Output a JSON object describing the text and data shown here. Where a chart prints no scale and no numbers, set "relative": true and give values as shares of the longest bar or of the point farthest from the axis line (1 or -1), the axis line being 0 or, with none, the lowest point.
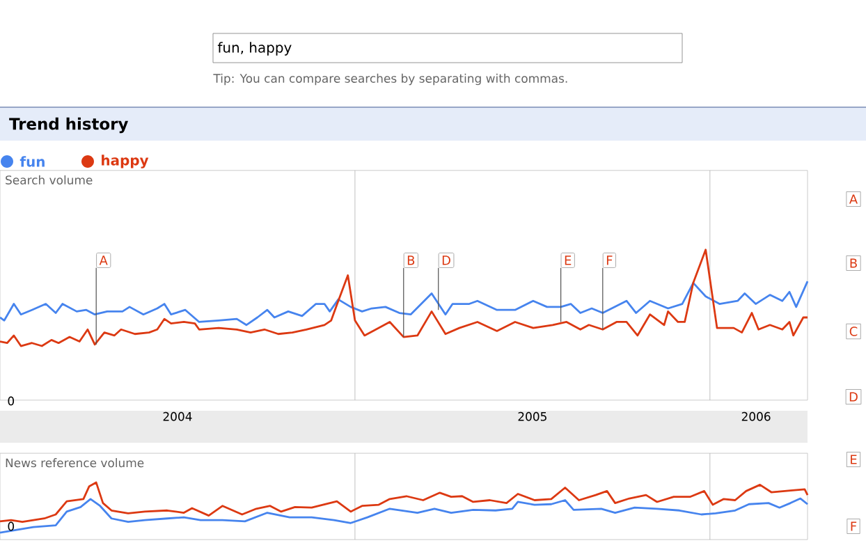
{
  "chart_data": [
    {
      "type": "line",
      "title": "Trend history",
      "ylabel": "Search volume",
      "relative": true,
      "legend": "top left",
      "xlim": [
        2004,
        2006.275
      ],
      "xticks": [
        {
          "value": 2004.5,
          "label": "2004"
        },
        {
          "value": 2005.5,
          "label": "2005"
        },
        {
          "value": 2006.13,
          "label": "2006"
        }
      ],
      "ref_lines": [
        {
          "axis": "x",
          "value": 2005,
          "color": "#b0b0b0"
        },
        {
          "axis": "x",
          "value": 2006,
          "color": "#b0b0b0"
        }
      ],
      "annotations": [
        "fun, happy",
        "Tip: You can compare searches by separating with commas.",
        "0",
        "A",
        "B",
        "C",
        "D",
        {
          "text": "A",
          "x": 2004.271,
          "y": 0.37
        },
        {
          "text": "B",
          "x": 2005.137,
          "y": 0.42
        },
        {
          "text": "D",
          "x": 2005.235,
          "y": 0.6
        },
        {
          "text": "E",
          "x": 2005.58,
          "y": 0.52
        },
        {
          "text": "F",
          "x": 2005.698,
          "y": 0.47
        }
      ],
      "series": [
        {
          "name": "fun",
          "color": "#4684ee",
          "x": [
            2004.0,
            2004.012,
            2004.039,
            2004.059,
            2004.09,
            2004.129,
            2004.157,
            2004.176,
            2004.216,
            2004.243,
            2004.267,
            2004.302,
            2004.345,
            2004.365,
            2004.404,
            2004.443,
            2004.463,
            2004.482,
            2004.522,
            2004.561,
            2004.616,
            2004.667,
            2004.694,
            2004.725,
            2004.753,
            2004.773,
            2004.812,
            2004.851,
            2004.89,
            2004.914,
            2004.929,
            2004.953,
            2004.988,
            2005.02,
            2005.047,
            2005.086,
            2005.125,
            2005.157,
            2005.216,
            2005.255,
            2005.275,
            2005.322,
            2005.345,
            2005.4,
            2005.451,
            2005.502,
            2005.541,
            2005.58,
            2005.608,
            2005.635,
            2005.667,
            2005.698,
            2005.765,
            2005.792,
            2005.831,
            2005.882,
            2005.922,
            2005.953,
            2005.988,
            2006.027,
            2006.078,
            2006.098,
            2006.129,
            2006.169,
            2006.204,
            2006.224,
            2006.243,
            2006.275
          ],
          "values": [
            0.55,
            0.53,
            0.64,
            0.57,
            0.6,
            0.64,
            0.58,
            0.64,
            0.59,
            0.6,
            0.57,
            0.59,
            0.59,
            0.62,
            0.57,
            0.61,
            0.64,
            0.57,
            0.6,
            0.52,
            0.53,
            0.54,
            0.5,
            0.55,
            0.6,
            0.55,
            0.59,
            0.56,
            0.64,
            0.64,
            0.59,
            0.67,
            0.62,
            0.59,
            0.61,
            0.62,
            0.58,
            0.57,
            0.71,
            0.57,
            0.64,
            0.64,
            0.66,
            0.6,
            0.6,
            0.66,
            0.62,
            0.62,
            0.64,
            0.58,
            0.61,
            0.58,
            0.66,
            0.58,
            0.66,
            0.61,
            0.64,
            0.78,
            0.69,
            0.64,
            0.66,
            0.71,
            0.64,
            0.7,
            0.66,
            0.72,
            0.62,
            0.79
          ]
        },
        {
          "name": "happy",
          "color": "#dc3912",
          "x": [
            2004.0,
            2004.02,
            2004.039,
            2004.059,
            2004.09,
            2004.118,
            2004.145,
            2004.165,
            2004.196,
            2004.224,
            2004.247,
            2004.267,
            2004.294,
            2004.322,
            2004.341,
            2004.38,
            2004.42,
            2004.443,
            2004.463,
            2004.482,
            2004.518,
            2004.549,
            2004.561,
            2004.616,
            2004.667,
            2004.706,
            2004.745,
            2004.784,
            2004.824,
            2004.863,
            2004.914,
            2004.933,
            2004.953,
            2004.98,
            2005.0,
            2005.027,
            2005.059,
            2005.098,
            2005.137,
            2005.176,
            2005.216,
            2005.255,
            2005.294,
            2005.345,
            2005.4,
            2005.451,
            2005.502,
            2005.557,
            2005.596,
            2005.635,
            2005.659,
            2005.698,
            2005.737,
            2005.765,
            2005.796,
            2005.831,
            2005.871,
            2005.882,
            2005.91,
            2005.929,
            2005.953,
            2005.988,
            2006.02,
            2006.067,
            2006.09,
            2006.118,
            2006.137,
            2006.169,
            2006.204,
            2006.224,
            2006.235,
            2006.263,
            2006.275
          ],
          "values": [
            0.39,
            0.38,
            0.43,
            0.36,
            0.38,
            0.36,
            0.4,
            0.38,
            0.42,
            0.39,
            0.47,
            0.37,
            0.45,
            0.43,
            0.47,
            0.44,
            0.45,
            0.47,
            0.54,
            0.51,
            0.52,
            0.51,
            0.47,
            0.48,
            0.47,
            0.45,
            0.47,
            0.44,
            0.45,
            0.47,
            0.5,
            0.53,
            0.66,
            0.83,
            0.53,
            0.43,
            0.47,
            0.52,
            0.42,
            0.43,
            0.59,
            0.44,
            0.48,
            0.52,
            0.46,
            0.52,
            0.48,
            0.5,
            0.52,
            0.47,
            0.5,
            0.47,
            0.52,
            0.52,
            0.43,
            0.57,
            0.5,
            0.59,
            0.52,
            0.52,
            0.78,
            1.0,
            0.48,
            0.48,
            0.45,
            0.58,
            0.47,
            0.5,
            0.47,
            0.52,
            0.43,
            0.55,
            0.55
          ]
        }
      ]
    },
    {
      "type": "line",
      "ylabel": "News reference volume",
      "relative": true,
      "xlim": [
        2004,
        2006.275
      ],
      "ref_lines": [
        {
          "axis": "x",
          "value": 2005,
          "color": "#b0b0b0"
        },
        {
          "axis": "x",
          "value": 2006,
          "color": "#b0b0b0"
        }
      ],
      "annotations": [
        "0",
        "E",
        "F"
      ],
      "series": [
        {
          "color": "#4684ee",
          "x": [
            2004.0,
            2004.047,
            2004.094,
            2004.157,
            2004.188,
            2004.227,
            2004.255,
            2004.282,
            2004.314,
            2004.361,
            2004.408,
            2004.471,
            2004.518,
            2004.565,
            2004.627,
            2004.69,
            2004.753,
            2004.816,
            2004.878,
            2004.941,
            2004.988,
            2005.035,
            2005.098,
            2005.176,
            2005.224,
            2005.271,
            2005.333,
            2005.396,
            2005.443,
            2005.459,
            2005.506,
            2005.553,
            2005.592,
            2005.616,
            2005.694,
            2005.733,
            2005.788,
            2005.851,
            2005.914,
            2005.976,
            2006.016,
            2006.071,
            2006.11,
            2006.165,
            2006.196,
            2006.227,
            2006.255,
            2006.275
          ],
          "values": [
            0.12,
            0.17,
            0.22,
            0.25,
            0.49,
            0.57,
            0.71,
            0.59,
            0.37,
            0.31,
            0.34,
            0.37,
            0.39,
            0.34,
            0.34,
            0.32,
            0.47,
            0.39,
            0.39,
            0.34,
            0.29,
            0.39,
            0.54,
            0.47,
            0.54,
            0.47,
            0.52,
            0.51,
            0.54,
            0.66,
            0.61,
            0.62,
            0.69,
            0.52,
            0.54,
            0.47,
            0.56,
            0.54,
            0.51,
            0.44,
            0.46,
            0.51,
            0.62,
            0.64,
            0.56,
            0.64,
            0.72,
            0.62
          ]
        },
        {
          "color": "#dc3912",
          "x": [
            2004.0,
            2004.031,
            2004.063,
            2004.094,
            2004.125,
            2004.157,
            2004.188,
            2004.235,
            2004.251,
            2004.271,
            2004.29,
            2004.314,
            2004.361,
            2004.408,
            2004.471,
            2004.518,
            2004.541,
            2004.588,
            2004.627,
            2004.682,
            2004.722,
            2004.761,
            2004.792,
            2004.831,
            2004.878,
            2004.949,
            2004.988,
            2005.02,
            2005.067,
            2005.098,
            2005.145,
            2005.192,
            2005.239,
            2005.271,
            2005.302,
            2005.333,
            2005.38,
            2005.427,
            2005.459,
            2005.506,
            2005.553,
            2005.592,
            2005.631,
            2005.678,
            2005.71,
            2005.733,
            2005.773,
            2005.82,
            2005.851,
            2005.898,
            2005.945,
            2005.984,
            2006.008,
            2006.039,
            2006.071,
            2006.102,
            2006.141,
            2006.173,
            2006.227,
            2006.267,
            2006.275
          ],
          "values": [
            0.32,
            0.34,
            0.31,
            0.34,
            0.37,
            0.44,
            0.67,
            0.71,
            0.93,
            1.0,
            0.64,
            0.51,
            0.46,
            0.49,
            0.51,
            0.47,
            0.55,
            0.42,
            0.59,
            0.44,
            0.54,
            0.59,
            0.49,
            0.57,
            0.56,
            0.67,
            0.49,
            0.59,
            0.61,
            0.71,
            0.76,
            0.69,
            0.82,
            0.75,
            0.76,
            0.66,
            0.69,
            0.64,
            0.8,
            0.69,
            0.71,
            0.91,
            0.69,
            0.78,
            0.85,
            0.64,
            0.72,
            0.78,
            0.66,
            0.75,
            0.75,
            0.85,
            0.61,
            0.71,
            0.69,
            0.85,
            0.96,
            0.83,
            0.86,
            0.88,
            0.78
          ]
        }
      ]
    }
  ]
}
